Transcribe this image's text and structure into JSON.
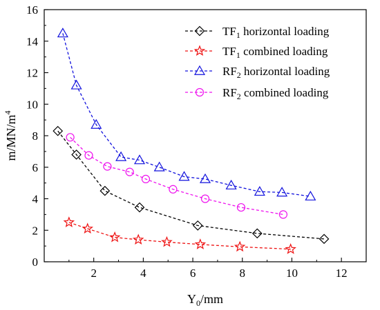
{
  "chart_data": {
    "type": "line",
    "xlabel": {
      "base": "Y",
      "sub": "0",
      "rest": "/mm"
    },
    "ylabel": {
      "base": "m/MN/m",
      "sup": "4"
    },
    "xlim": [
      0,
      13
    ],
    "ylim": [
      0,
      16
    ],
    "xticks": [
      2,
      4,
      6,
      8,
      10,
      12
    ],
    "yticks": [
      0,
      2,
      4,
      6,
      8,
      10,
      12,
      14,
      16
    ],
    "grid": false,
    "legend_position": "top-right",
    "series": [
      {
        "name": "TF1 horizontal loading",
        "legend": {
          "base": "TF",
          "sub": "1",
          "rest": " horizontal loading"
        },
        "color": "#000000",
        "marker": "diamond",
        "x": [
          0.55,
          1.3,
          2.45,
          3.85,
          6.2,
          8.6,
          11.3
        ],
        "y": [
          8.3,
          6.8,
          4.5,
          3.45,
          2.3,
          1.8,
          1.45
        ]
      },
      {
        "name": "TF1 combined loading",
        "legend": {
          "base": "TF",
          "sub": "1",
          "rest": " combined loading"
        },
        "color": "#ee1111",
        "marker": "star",
        "x": [
          1.0,
          1.75,
          2.85,
          3.8,
          4.95,
          6.3,
          7.9,
          9.95
        ],
        "y": [
          2.5,
          2.1,
          1.55,
          1.4,
          1.25,
          1.1,
          0.95,
          0.8
        ]
      },
      {
        "name": "RF2 horizontal loading",
        "legend": {
          "base": "RF",
          "sub": "2",
          "rest": " horizontal loading"
        },
        "color": "#1111dd",
        "marker": "triangle",
        "x": [
          0.75,
          1.3,
          2.1,
          3.1,
          3.85,
          4.65,
          5.65,
          6.5,
          7.55,
          8.7,
          9.6,
          10.75
        ],
        "y": [
          14.5,
          11.2,
          8.7,
          6.65,
          6.45,
          6.0,
          5.4,
          5.25,
          4.85,
          4.45,
          4.4,
          4.15
        ]
      },
      {
        "name": "RF2 combined loading",
        "legend": {
          "base": "RF",
          "sub": "2",
          "rest": " combined loading"
        },
        "color": "#ee11ee",
        "marker": "circle",
        "x": [
          1.05,
          1.8,
          2.55,
          3.45,
          4.1,
          5.2,
          6.5,
          7.95,
          9.65
        ],
        "y": [
          7.9,
          6.75,
          6.05,
          5.7,
          5.25,
          4.6,
          4.0,
          3.45,
          3.0
        ]
      }
    ]
  }
}
